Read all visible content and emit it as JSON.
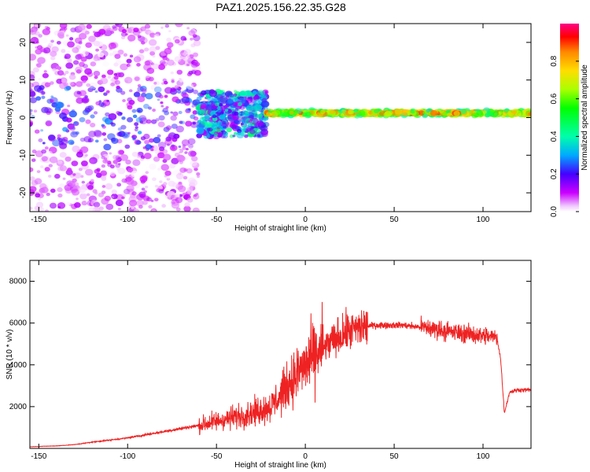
{
  "title": "PAZ1.2025.156.22.35.G28",
  "chart_data": [
    {
      "type": "heatmap",
      "xlabel": "Height of straight line (km)",
      "ylabel": "Frequency (Hz)",
      "xlim": [
        -155,
        127
      ],
      "ylim": [
        -25,
        25
      ],
      "xticks": [
        -150,
        -100,
        -50,
        0,
        50,
        100
      ],
      "yticks": [
        -20,
        -10,
        0,
        10,
        20
      ],
      "colorbar": {
        "label": "Normalized spectral amplitude",
        "range": [
          0.0,
          1.0
        ],
        "ticks": [
          0.0,
          0.2,
          0.4,
          0.6,
          0.8
        ],
        "colors": [
          "#ffffff",
          "#cc00ff",
          "#4400ff",
          "#00aaff",
          "#00ffaa",
          "#00ff00",
          "#aaff00",
          "#ffdd00",
          "#ff8800",
          "#ff0000",
          "#ff0088"
        ]
      },
      "features": [
        {
          "x_range": [
            -155,
            -60
          ],
          "freq_spread_hz": 25,
          "amplitude": 0.15
        },
        {
          "x_range": [
            -60,
            -22
          ],
          "freq_range": [
            -5,
            7
          ],
          "amplitude": 0.3
        },
        {
          "x_range": [
            -22,
            127
          ],
          "freq_center_hz": 1.2,
          "amplitude": 0.9
        }
      ]
    },
    {
      "type": "line",
      "xlabel": "Height of straight line (km)",
      "ylabel": "SNR (10 * v/v)",
      "xlim": [
        -155,
        127
      ],
      "ylim": [
        0,
        9000
      ],
      "xticks": [
        -150,
        -100,
        -50,
        0,
        50,
        100
      ],
      "yticks": [
        2000,
        4000,
        6000,
        8000
      ],
      "color": "#ee2222",
      "series": [
        {
          "x": [
            -155,
            -140,
            -130,
            -120,
            -110,
            -100,
            -90,
            -80,
            -70,
            -60,
            -50,
            -40,
            -30,
            -20,
            -15,
            -10,
            -5,
            0,
            5,
            10,
            15,
            20,
            25,
            30,
            35,
            40,
            45,
            50,
            55,
            60,
            65,
            70,
            75,
            80,
            85,
            90,
            95,
            100,
            105,
            108,
            110,
            112,
            115,
            120,
            127
          ],
          "y": [
            80,
            120,
            180,
            300,
            400,
            500,
            650,
            800,
            950,
            1100,
            1300,
            1500,
            1700,
            2000,
            2400,
            3000,
            3500,
            4000,
            4400,
            4800,
            5100,
            5400,
            5600,
            5750,
            5850,
            5900,
            5900,
            5900,
            5900,
            5850,
            5800,
            5750,
            5700,
            5600,
            5550,
            5500,
            5450,
            5400,
            5350,
            5300,
            4200,
            1700,
            2700,
            2800,
            2800
          ]
        }
      ]
    }
  ]
}
